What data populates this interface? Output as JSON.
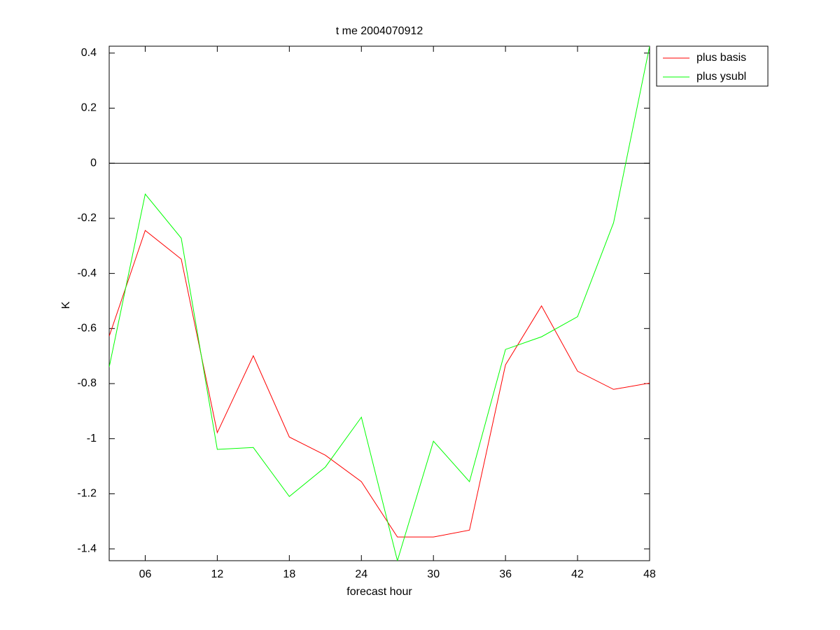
{
  "chart_data": {
    "type": "line",
    "title": "t me 2004070912",
    "x_label": "forecast hour",
    "y_label": "K",
    "x": [
      3,
      6,
      9,
      12,
      15,
      18,
      21,
      24,
      27,
      30,
      33,
      36,
      39,
      42,
      45,
      48
    ],
    "series": [
      {
        "name": "plus basis",
        "color": "#ff0000",
        "values": [
          -0.628,
          -0.244,
          -0.348,
          -0.978,
          -0.699,
          -0.994,
          -1.06,
          -1.156,
          -1.357,
          -1.357,
          -1.332,
          -0.732,
          -0.518,
          -0.755,
          -0.821,
          -0.798
        ]
      },
      {
        "name": "plus ysubl",
        "color": "#00ff00",
        "values": [
          -0.74,
          -0.112,
          -0.272,
          -1.039,
          -1.032,
          -1.21,
          -1.103,
          -0.922,
          -1.443,
          -1.009,
          -1.156,
          -0.676,
          -0.63,
          -0.557,
          -0.216,
          0.425
        ]
      }
    ],
    "xlim": [
      3,
      48
    ],
    "ylim": [
      -1.443,
      0.425
    ],
    "xticks": [
      {
        "value": 6,
        "label": "06"
      },
      12,
      18,
      24,
      30,
      36,
      42,
      48
    ],
    "yticks": [
      0.4,
      0.2,
      0,
      -0.2,
      -0.4,
      -0.6,
      -0.8,
      -1,
      -1.2,
      -1.4
    ],
    "zero_line": true,
    "grid": false,
    "legend": "outside-top-right"
  }
}
